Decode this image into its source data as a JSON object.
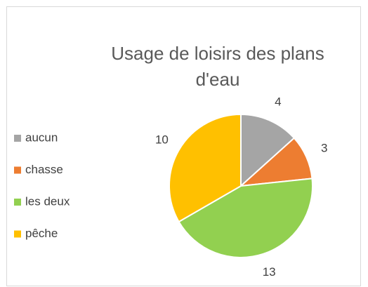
{
  "chart_data": {
    "type": "pie",
    "title": "Usage de loisirs des plans d'eau",
    "categories": [
      "aucun",
      "chasse",
      "les deux",
      "pêche"
    ],
    "values": [
      4,
      3,
      13,
      10
    ],
    "colors": [
      "#a5a5a5",
      "#ed7d31",
      "#92d050",
      "#ffc000"
    ],
    "legend": "left"
  }
}
